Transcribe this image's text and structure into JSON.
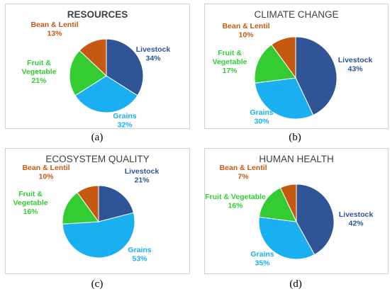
{
  "colors": {
    "Livestock": "#2f5597",
    "Grains": "#1aaff0",
    "Fruit & Vegetable": "#33cc33",
    "Bean & Lentil": "#c65911"
  },
  "chart_data": [
    {
      "type": "pie",
      "title": "RESOURCES",
      "caption": "(a)",
      "slices": [
        {
          "category": "Livestock",
          "value": 34,
          "label_lines": [
            "Livestock",
            "34%"
          ]
        },
        {
          "category": "Grains",
          "value": 32,
          "label_lines": [
            "Grains",
            "32%"
          ]
        },
        {
          "category": "Fruit & Vegetable",
          "value": 21,
          "label_lines": [
            "Fruit &",
            "Vegetable",
            "21%"
          ]
        },
        {
          "category": "Bean & Lentil",
          "value": 13,
          "label_lines": [
            "Bean & Lentil",
            "13%"
          ]
        }
      ]
    },
    {
      "type": "pie",
      "title": "CLIMATE CHANGE",
      "caption": "(b)",
      "slices": [
        {
          "category": "Livestock",
          "value": 43,
          "label_lines": [
            "Livestock",
            "43%"
          ]
        },
        {
          "category": "Grains",
          "value": 30,
          "label_lines": [
            "Grains",
            "30%"
          ]
        },
        {
          "category": "Fruit & Vegetable",
          "value": 17,
          "label_lines": [
            "Fruit &",
            "Vegetable",
            "17%"
          ]
        },
        {
          "category": "Bean & Lentil",
          "value": 10,
          "label_lines": [
            "Bean & Lentil",
            "10%"
          ]
        }
      ]
    },
    {
      "type": "pie",
      "title": "ECOSYSTEM QUALITY",
      "caption": "(c)",
      "slices": [
        {
          "category": "Livestock",
          "value": 21,
          "label_lines": [
            "Livestock",
            "21%"
          ]
        },
        {
          "category": "Grains",
          "value": 53,
          "label_lines": [
            "Grains",
            "53%"
          ]
        },
        {
          "category": "Fruit & Vegetable",
          "value": 16,
          "label_lines": [
            "Fruit &",
            "Vegetable",
            "16%"
          ]
        },
        {
          "category": "Bean & Lentil",
          "value": 10,
          "label_lines": [
            "Bean & Lentil",
            "10%"
          ]
        }
      ]
    },
    {
      "type": "pie",
      "title": "HUMAN HEALTH",
      "caption": "(d)",
      "slices": [
        {
          "category": "Livestock",
          "value": 42,
          "label_lines": [
            "Livestock",
            "42%"
          ]
        },
        {
          "category": "Grains",
          "value": 35,
          "label_lines": [
            "Grains",
            "35%"
          ]
        },
        {
          "category": "Fruit & Vegetable",
          "value": 16,
          "label_lines": [
            "Fruit & Vegetable",
            "16%"
          ]
        },
        {
          "category": "Bean & Lentil",
          "value": 7,
          "label_lines": [
            "Bean & Lentil",
            "7%"
          ]
        }
      ]
    }
  ]
}
